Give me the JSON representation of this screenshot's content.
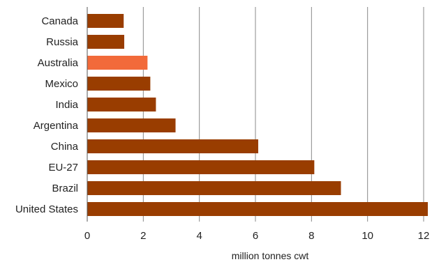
{
  "chart_data": {
    "type": "bar",
    "orientation": "horizontal",
    "categories": [
      "Canada",
      "Russia",
      "Australia",
      "Mexico",
      "India",
      "Argentina",
      "China",
      "EU-27",
      "Brazil",
      "United States"
    ],
    "values": [
      1.3,
      1.32,
      2.15,
      2.25,
      2.45,
      3.15,
      6.1,
      8.1,
      9.05,
      12.15
    ],
    "highlight_index": 2,
    "xlabel": "million tonnes cwt",
    "ylabel": "",
    "title": "",
    "xlim": [
      0,
      12
    ],
    "xticks": [
      "0",
      "2",
      "4",
      "6",
      "8",
      "10",
      "12"
    ],
    "grid": "vertical",
    "colors": {
      "bar": "#993d00",
      "highlight": "#f26a3a",
      "grid": "#888888",
      "axis": "#555555"
    }
  }
}
